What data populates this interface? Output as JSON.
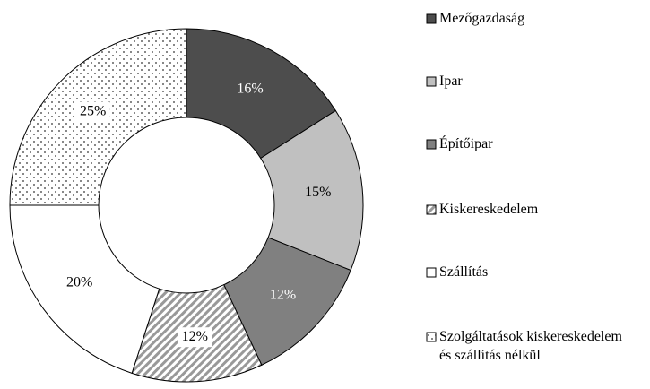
{
  "chart_data": {
    "type": "donut",
    "categories": [
      "Mezőgazdaság",
      "Ipar",
      "Építőipar",
      "Kiskereskedelem",
      "Szállítás",
      "Szolgáltatások kiskereskedelem és szállítás nélkül"
    ],
    "values": [
      16,
      15,
      12,
      12,
      20,
      25
    ],
    "value_labels": [
      "16%",
      "15%",
      "12%",
      "12%",
      "20%",
      "25%"
    ],
    "colors": [
      "#4d4d4d",
      "#c0c0c0",
      "#808080",
      "#ffffff",
      "#ffffff",
      "#ffffff"
    ],
    "patterns": [
      null,
      null,
      null,
      "hatch",
      null,
      "dots"
    ],
    "legend": "right"
  }
}
